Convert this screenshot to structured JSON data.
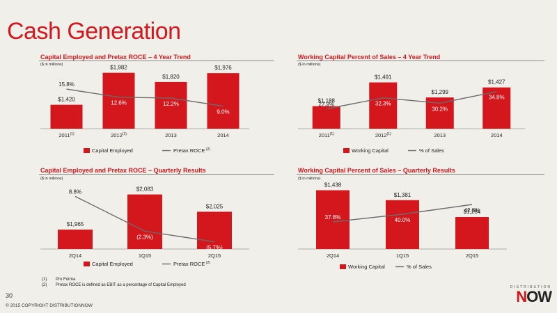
{
  "page": {
    "title": "Cash Generation",
    "page_number": "30",
    "copyright": "© 2015 COPYRIGHT DISTRIBUTIONNOW",
    "logo_top": "DISTRIBUTION",
    "logo_main_n": "N",
    "logo_main_ow": "OW"
  },
  "footnotes": [
    {
      "num": "(1)",
      "text": "Pro Forma"
    },
    {
      "num": "(2)",
      "text": "Pretax ROCE is defined as EBIT as a percentage of Capital Employed"
    }
  ],
  "colors": {
    "bar": "#d4171c",
    "line": "#6b6b6b",
    "title": "#d4171c"
  },
  "chart_data": [
    {
      "type": "bar",
      "title": "Capital Employed and Pretax ROCE – 4 Year Trend",
      "units": "($ in millions)",
      "categories": [
        "2011",
        "2012",
        "2013",
        "2014"
      ],
      "category_sup": [
        "(1)",
        "(1)",
        "",
        ""
      ],
      "bar_values": [
        1420,
        1982,
        1820,
        1976
      ],
      "bar_labels": [
        "$1,420",
        "$1,982",
        "$1,820",
        "$1,976"
      ],
      "line_values": [
        15.8,
        12.6,
        12.2,
        9.0
      ],
      "line_labels": [
        "15.8%",
        "12.6%",
        "12.2%",
        "9.0%"
      ],
      "legend": {
        "bar": "Capital Employed",
        "line": "Pretax ROCE",
        "line_sup": "(2)"
      }
    },
    {
      "type": "bar",
      "title": "Working Capital Percent of Sales – 4 Year Trend",
      "units": "($ in millions)",
      "categories": [
        "2011",
        "2012",
        "2013",
        "2014"
      ],
      "category_sup": [
        "(1)",
        "(1)",
        "",
        ""
      ],
      "bar_values": [
        1188,
        1491,
        1299,
        1427
      ],
      "bar_labels": [
        "$1,188",
        "$1,491",
        "$1,299",
        "$1,427"
      ],
      "line_values": [
        27.9,
        32.3,
        30.2,
        34.8
      ],
      "line_labels": [
        "27.9%",
        "32.3%",
        "30.2%",
        "34.8%"
      ],
      "legend": {
        "bar": "Working Capital",
        "line": "% of Sales",
        "line_sup": ""
      }
    },
    {
      "type": "bar",
      "title": "Capital Employed and Pretax ROCE – Quarterly Results",
      "units": "($ in millions)",
      "categories": [
        "2Q14",
        "1Q15",
        "2Q15"
      ],
      "category_sup": [
        "",
        "",
        ""
      ],
      "bar_values": [
        1965,
        2083,
        2025
      ],
      "bar_labels": [
        "$1,965",
        "$2,083",
        "$2,025"
      ],
      "line_values": [
        8.8,
        -2.3,
        -5.7
      ],
      "line_labels": [
        "8.8%",
        "(2.3%)",
        "(5.7%)"
      ],
      "legend": {
        "bar": "Capital Employed",
        "line": "Pretax ROCE",
        "line_sup": "(2)"
      }
    },
    {
      "type": "bar",
      "title": "Working Capital Percent of Sales – Quarterly Results",
      "units": "($ in millions)",
      "categories": [
        "2Q14",
        "1Q15",
        "2Q15"
      ],
      "category_sup": [
        "",
        "",
        ""
      ],
      "bar_values": [
        1438,
        1381,
        1284
      ],
      "bar_labels": [
        "$1,438",
        "$1,381",
        "$1,284"
      ],
      "line_values": [
        37.8,
        40.0,
        42.8
      ],
      "line_labels": [
        "37.8%",
        "40.0%",
        "42.8%"
      ],
      "legend": {
        "bar": "Working Capital",
        "line": "% of Sales",
        "line_sup": ""
      }
    }
  ]
}
